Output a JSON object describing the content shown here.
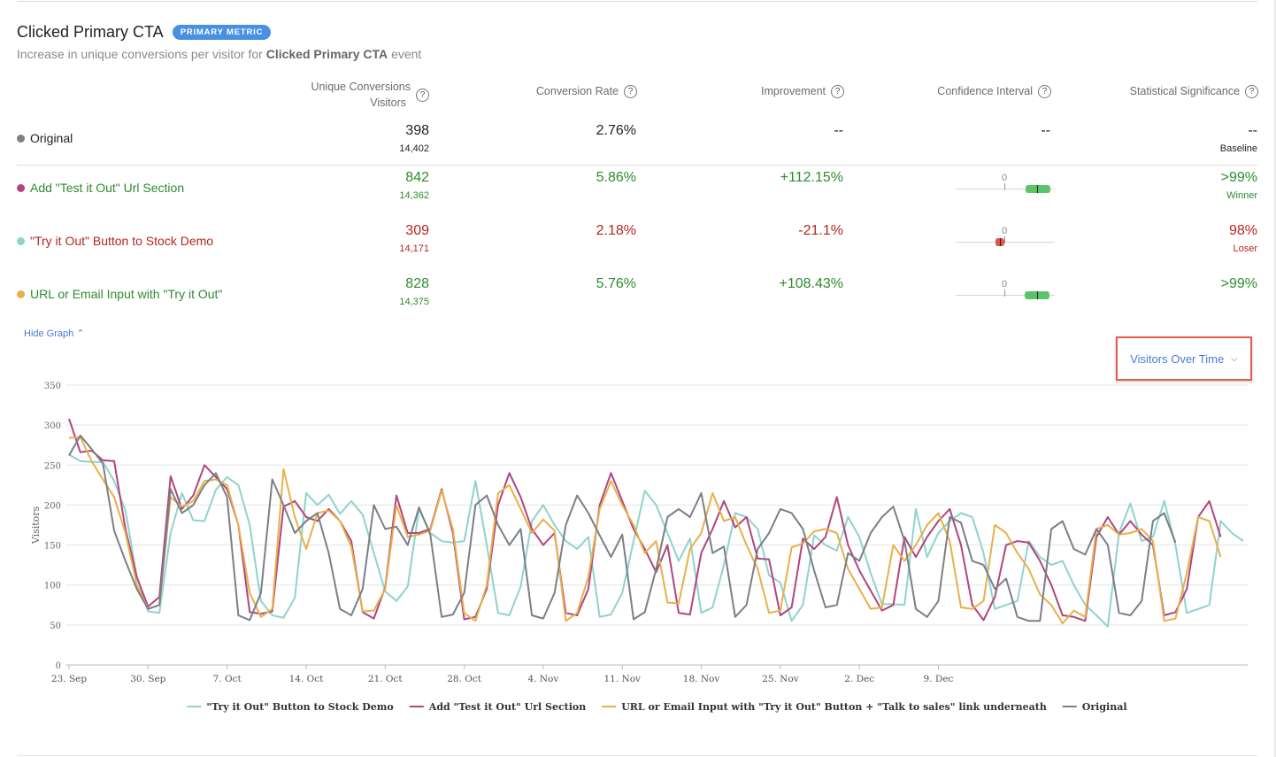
{
  "metric": {
    "title": "Clicked Primary CTA",
    "badge": "PRIMARY METRIC",
    "subtitle_prefix": "Increase in unique conversions per visitor for",
    "subtitle_event": "Clicked Primary CTA",
    "subtitle_suffix": "event"
  },
  "columns": {
    "conversions_line1": "Unique Conversions",
    "conversions_line2": "Visitors",
    "rate": "Conversion Rate",
    "improvement": "Improvement",
    "ci": "Confidence Interval",
    "significance": "Statistical Significance",
    "help": "?"
  },
  "variations": [
    {
      "name": "Original",
      "color": "#7b7f86",
      "conversions": "398",
      "visitors": "14,402",
      "rate": "2.76%",
      "improvement": "--",
      "ci": "--",
      "significance": "--",
      "sig_label": "Baseline",
      "tone": "dark"
    },
    {
      "name": "Add \"Test it Out\" Url Section",
      "color": "#b0457f",
      "conversions": "842",
      "visitors": "14,362",
      "rate": "5.86%",
      "improvement": "+112.15%",
      "significance": ">99%",
      "sig_label": "Winner",
      "tone": "green",
      "ci_zero": "0"
    },
    {
      "name": "\"Try it Out\" Button to Stock Demo",
      "color": "#8fd3cd",
      "conversions": "309",
      "visitors": "14,171",
      "rate": "2.18%",
      "improvement": "-21.1%",
      "significance": "98%",
      "sig_label": "Loser",
      "tone": "red",
      "ci_zero": "0"
    },
    {
      "name": "URL or Email Input with \"Try it Out\" Button + \"Talk to sales\" link underneath",
      "color": "#e8b04a",
      "conversions": "828",
      "visitors": "14,375",
      "rate": "5.76%",
      "improvement": "+108.43%",
      "significance": ">99%",
      "sig_label": "",
      "tone": "green",
      "ci_zero": "0"
    }
  ],
  "controls": {
    "hide_graph": "Hide Graph",
    "hide_graph_icon": "chevron-up-icon",
    "view_select": "Visitors Over Time",
    "view_select_icon": "chevron-down-icon"
  },
  "chart_data": {
    "type": "line",
    "ylabel": "Visitors",
    "xlabel": "",
    "ylim": [
      0,
      350
    ],
    "yticks": [
      0,
      50,
      100,
      150,
      200,
      250,
      300,
      350
    ],
    "grid": true,
    "x_start": "2018-09-23",
    "x_ticks": [
      "23. Sep",
      "30. Sep",
      "7. Oct",
      "14. Oct",
      "21. Oct",
      "28. Oct",
      "4. Nov",
      "11. Nov",
      "18. Nov",
      "25. Nov",
      "2. Dec",
      "9. Dec"
    ],
    "legend_position": "bottom",
    "series": [
      {
        "name": "\"Try it Out\" Button to Stock Demo",
        "color": "#8fd3cd",
        "values": [
          263,
          255,
          254,
          254,
          230,
          193,
          110,
          67,
          65,
          165,
          215,
          181,
          180,
          219,
          235,
          225,
          175,
          80,
          62,
          59,
          84,
          215,
          200,
          213,
          189,
          205,
          188,
          140,
          92,
          80,
          98,
          195,
          165,
          155,
          153,
          155,
          230,
          150,
          65,
          62,
          98,
          180,
          200,
          175,
          155,
          145,
          160,
          60,
          63,
          90,
          155,
          218,
          200,
          165,
          130,
          158,
          65,
          72,
          125,
          190,
          185,
          170,
          112,
          103,
          55,
          75,
          162,
          150,
          143,
          185,
          160,
          115,
          76,
          76,
          75,
          195,
          135,
          165,
          180,
          190,
          185,
          140,
          70,
          75,
          80,
          155,
          135,
          125,
          130,
          100,
          75,
          62,
          48,
          165,
          202,
          155,
          160,
          205,
          150,
          65,
          70,
          75,
          180,
          165,
          155
        ]
      },
      {
        "name": "Add \"Test it Out\" Url Section",
        "color": "#b0457f",
        "values": [
          308,
          266,
          268,
          256,
          255,
          170,
          110,
          73,
          85,
          236,
          195,
          212,
          250,
          235,
          220,
          175,
          66,
          64,
          67,
          198,
          205,
          185,
          180,
          195,
          180,
          155,
          66,
          58,
          97,
          212,
          165,
          165,
          170,
          220,
          165,
          57,
          60,
          95,
          200,
          240,
          210,
          170,
          150,
          165,
          65,
          62,
          95,
          200,
          240,
          205,
          170,
          145,
          116,
          150,
          65,
          63,
          140,
          170,
          205,
          172,
          185,
          133,
          132,
          62,
          72,
          158,
          145,
          160,
          210,
          150,
          118,
          93,
          68,
          75,
          160,
          135,
          160,
          180,
          195,
          150,
          75,
          56,
          85,
          150,
          155,
          153,
          130,
          100,
          62,
          60,
          55,
          160,
          185,
          163,
          180,
          163,
          150,
          62,
          66,
          95,
          185,
          205,
          160
        ]
      },
      {
        "name": "URL or Email Input with \"Try it Out\" Button + \"Talk to sales\" link underneath",
        "color": "#e8b04a",
        "values": [
          284,
          285,
          255,
          232,
          210,
          165,
          100,
          70,
          75,
          210,
          198,
          205,
          230,
          232,
          225,
          175,
          90,
          60,
          70,
          245,
          185,
          145,
          190,
          193,
          180,
          148,
          67,
          68,
          95,
          200,
          160,
          163,
          168,
          218,
          170,
          65,
          55,
          100,
          215,
          225,
          195,
          165,
          182,
          168,
          55,
          65,
          110,
          195,
          230,
          200,
          175,
          140,
          155,
          78,
          77,
          145,
          165,
          215,
          180,
          185,
          150,
          120,
          65,
          68,
          147,
          152,
          167,
          170,
          165,
          120,
          95,
          70,
          72,
          150,
          130,
          150,
          175,
          190,
          155,
          72,
          70,
          80,
          175,
          165,
          140,
          120,
          88,
          75,
          52,
          68,
          60,
          170,
          175,
          163,
          165,
          170,
          155,
          55,
          58,
          115,
          185,
          180,
          135
        ]
      },
      {
        "name": "Original",
        "color": "#7b7f86",
        "values": [
          262,
          287,
          270,
          252,
          168,
          130,
          95,
          70,
          75,
          220,
          190,
          200,
          225,
          240,
          210,
          62,
          56,
          90,
          232,
          200,
          165,
          180,
          190,
          140,
          70,
          62,
          95,
          200,
          170,
          173,
          150,
          197,
          163,
          60,
          63,
          90,
          200,
          212,
          175,
          150,
          170,
          62,
          58,
          90,
          175,
          212,
          190,
          162,
          135,
          163,
          57,
          66,
          120,
          185,
          195,
          185,
          215,
          140,
          148,
          60,
          75,
          145,
          165,
          195,
          190,
          170,
          118,
          72,
          75,
          140,
          130,
          165,
          185,
          198,
          155,
          70,
          60,
          80,
          185,
          178,
          130,
          125,
          95,
          108,
          60,
          55,
          55,
          170,
          180,
          145,
          138,
          170,
          150,
          65,
          62,
          80,
          180,
          190,
          153
        ]
      }
    ]
  }
}
